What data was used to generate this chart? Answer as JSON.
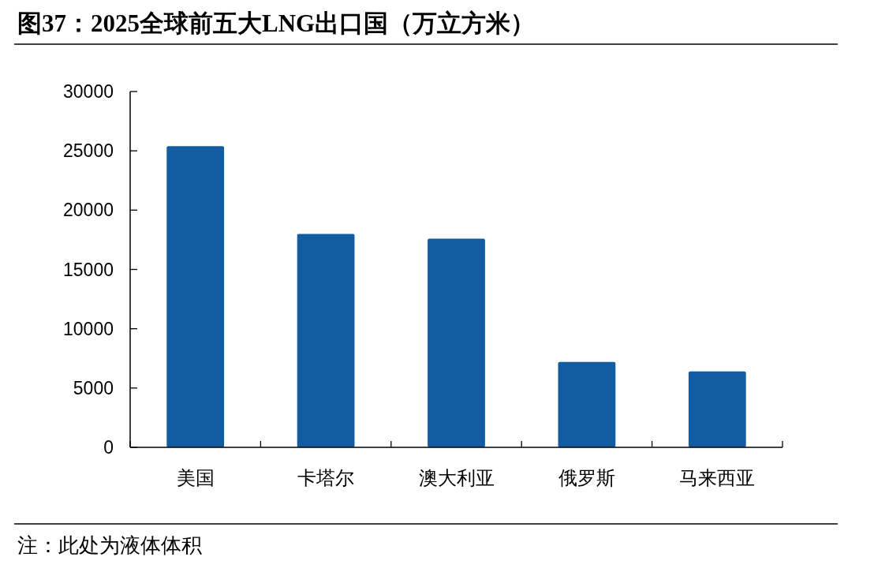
{
  "chart_data": {
    "type": "bar",
    "title": "图37：2025全球前五大LNG出口国（万立方米）",
    "categories": [
      "美国",
      "卡塔尔",
      "澳大利亚",
      "俄罗斯",
      "马来西亚"
    ],
    "values": [
      25400,
      18000,
      17600,
      7200,
      6400
    ],
    "color": "#125da1",
    "ylim": [
      0,
      30000
    ],
    "yticks": [
      0,
      5000,
      10000,
      15000,
      20000,
      25000,
      30000
    ],
    "annotations": [
      "注：此处为液体体积"
    ]
  }
}
